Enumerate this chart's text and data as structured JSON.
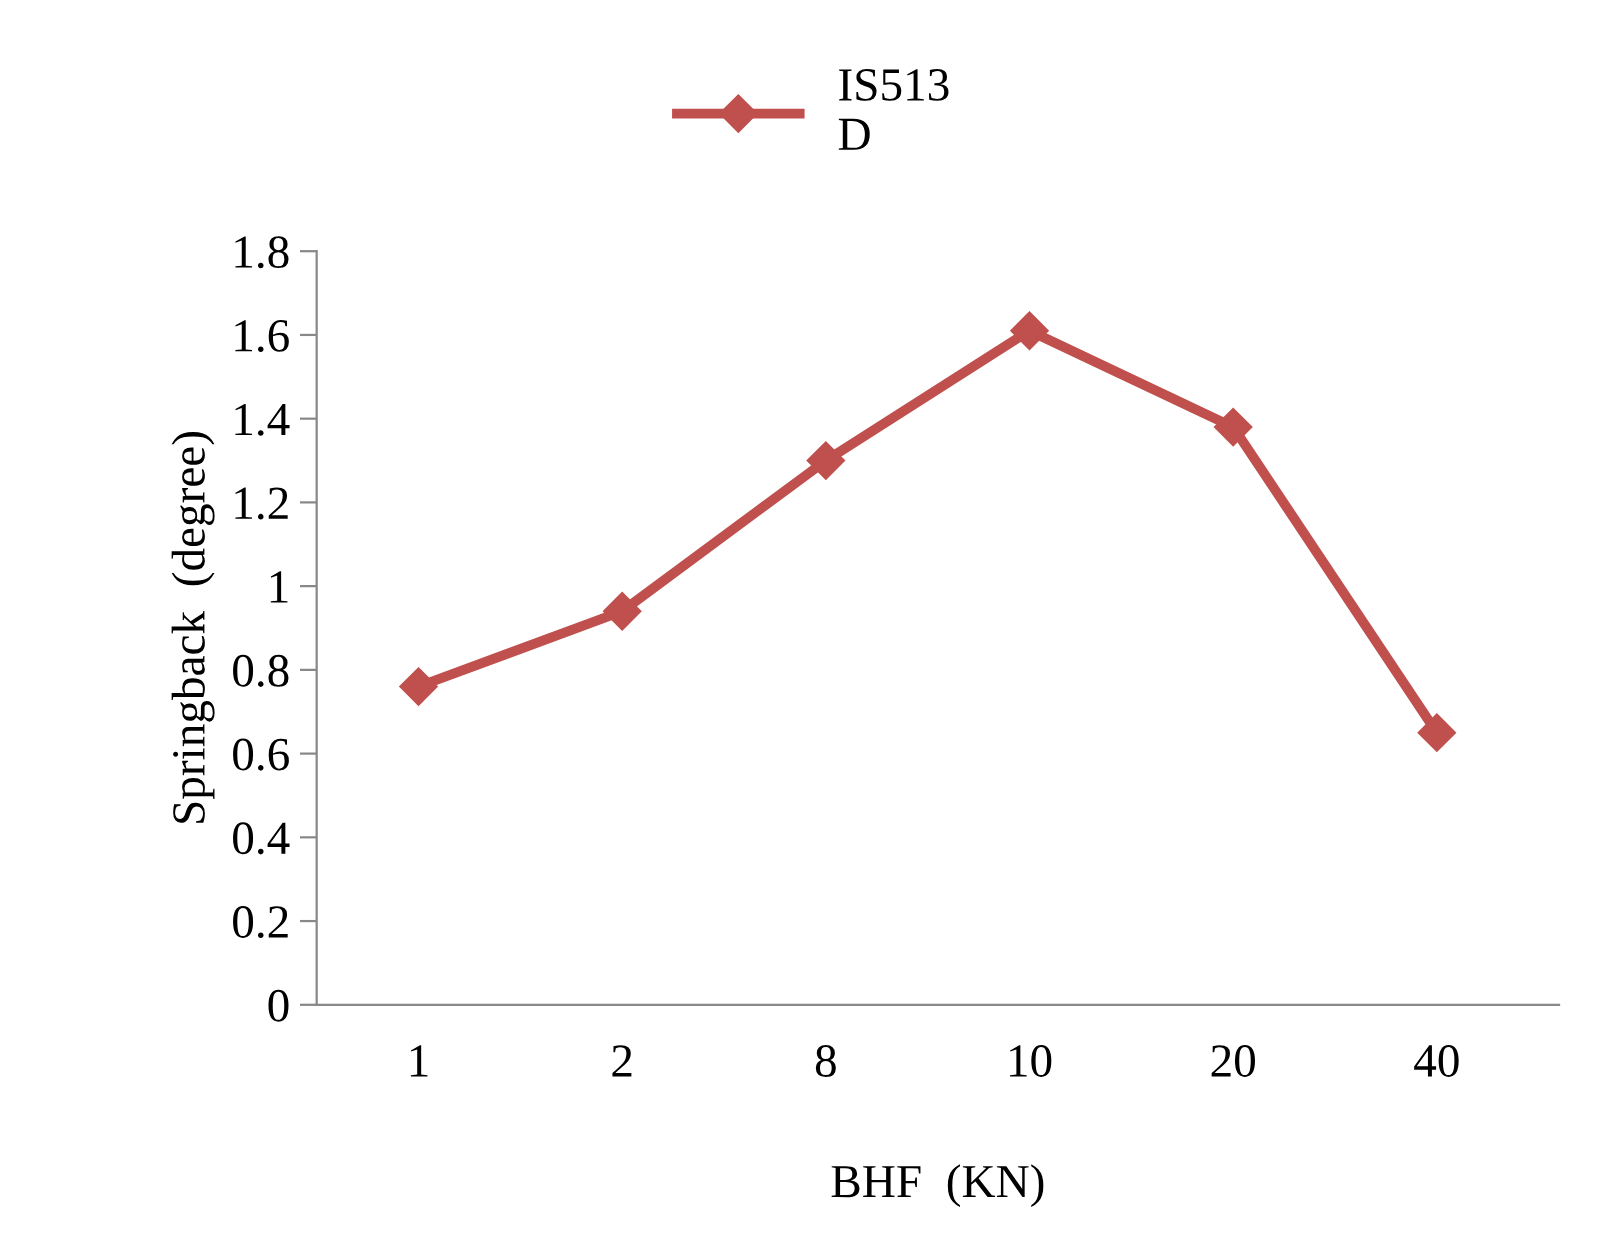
{
  "chart_data": {
    "type": "line",
    "xlabel": "BHF  (KN)",
    "ylabel": "Springback  (degree)",
    "categories": [
      "1",
      "2",
      "8",
      "10",
      "20",
      "40"
    ],
    "series": [
      {
        "name": "IS513\nD",
        "color": "#c0504d",
        "values": [
          0.76,
          0.94,
          1.3,
          1.61,
          1.38,
          0.65
        ]
      }
    ],
    "ylim": [
      0,
      1.8
    ],
    "yticks": [
      0,
      0.2,
      0.4,
      0.6,
      0.8,
      1,
      1.2,
      1.4,
      1.6,
      1.8
    ],
    "marker": "diamond",
    "line_style": "solid",
    "legend": "top",
    "grid": false
  }
}
